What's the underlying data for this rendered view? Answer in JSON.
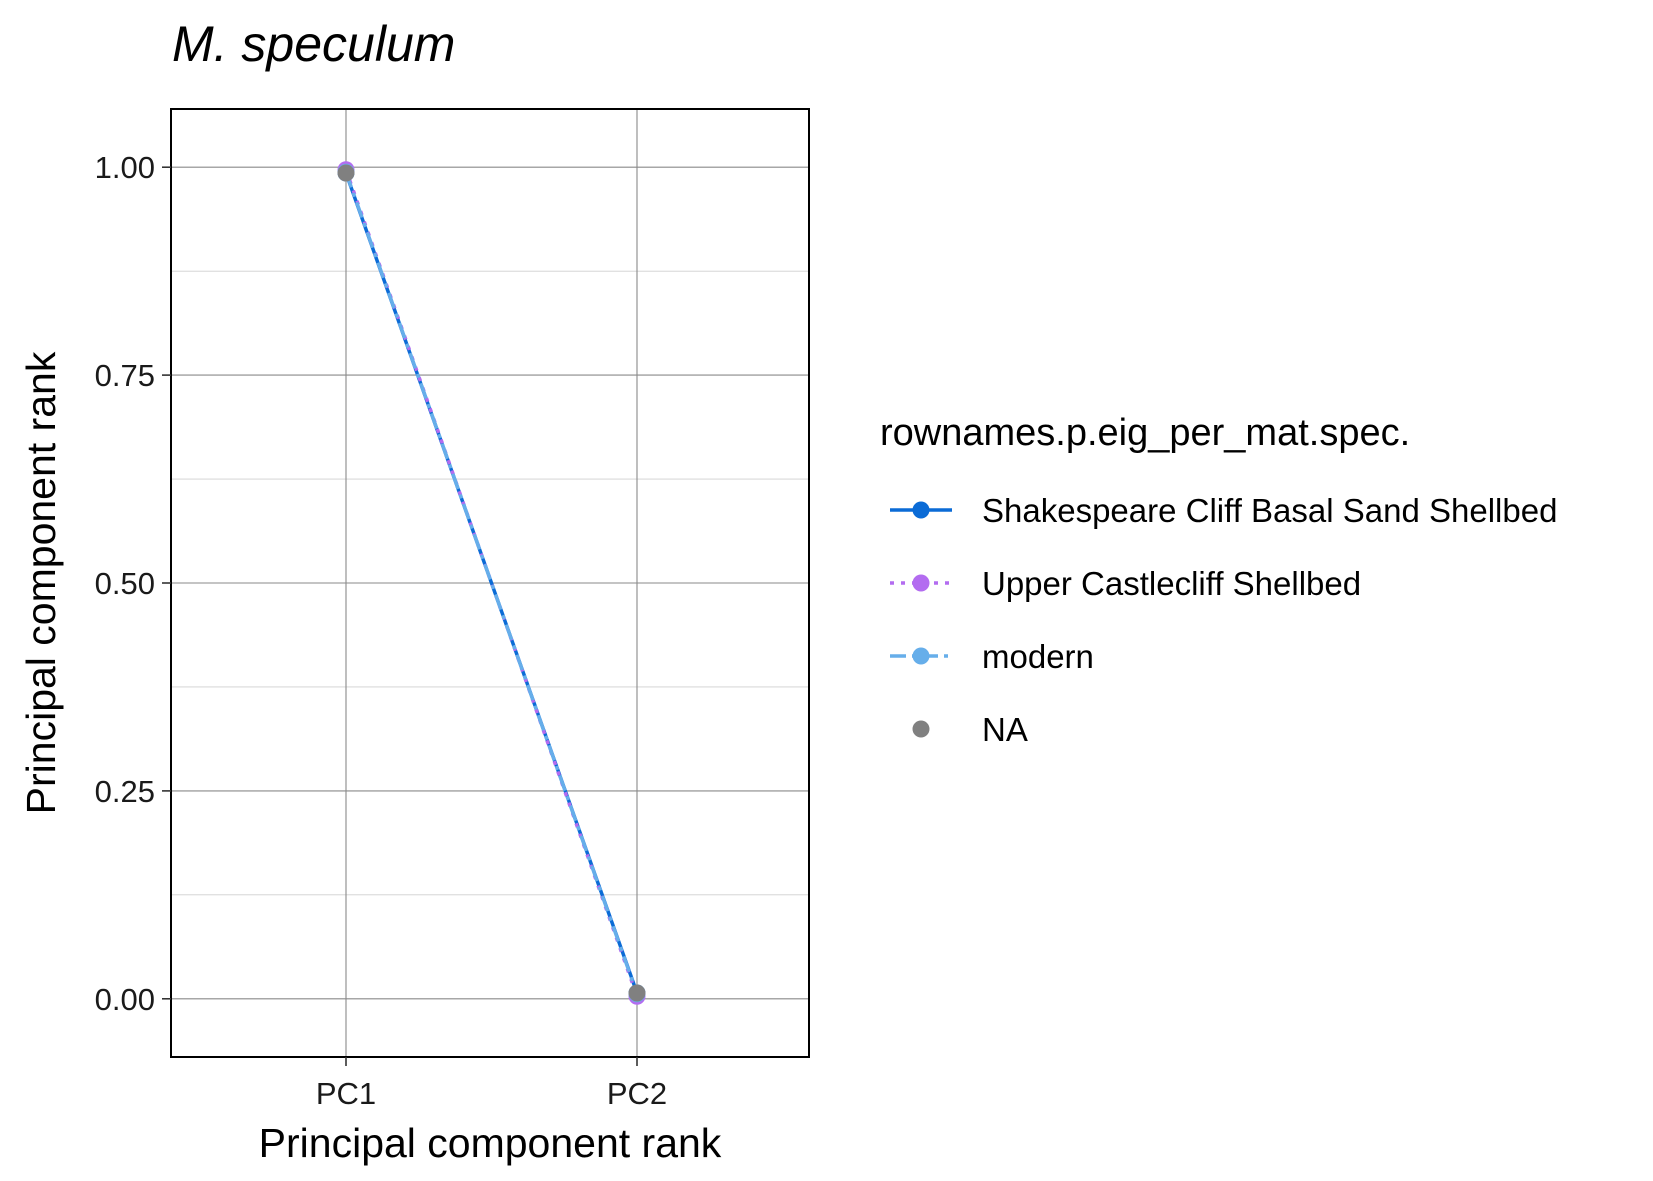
{
  "chart_data": {
    "type": "line",
    "title": "M. speculum",
    "xlabel": "Principal component rank",
    "ylabel": "Principal component rank",
    "categories": [
      "PC1",
      "PC2"
    ],
    "ylim": [
      -0.07,
      1.07
    ],
    "yticks": [
      0.0,
      0.25,
      0.5,
      0.75,
      1.0
    ],
    "ytick_labels": [
      "0.00",
      "0.25",
      "0.50",
      "0.75",
      "1.00"
    ],
    "grid": true,
    "legend": {
      "title": "rownames.p.eig_per_mat.spec.",
      "placement": "right"
    },
    "series": [
      {
        "name": "Shakespeare Cliff Basal Sand Shellbed",
        "values": [
          0.993,
          0.007
        ],
        "color": "#0b6bd6",
        "dash": "solid",
        "line": true
      },
      {
        "name": "Upper Castlecliff Shellbed",
        "values": [
          0.997,
          0.003
        ],
        "color": "#b36cf0",
        "dash": "dotted",
        "line": true
      },
      {
        "name": "modern",
        "values": [
          0.994,
          0.006
        ],
        "color": "#66aeea",
        "dash": "dashed",
        "line": true
      },
      {
        "name": "NA",
        "values": [
          0.993,
          0.007
        ],
        "color": "#808080",
        "dash": "none",
        "line": false
      }
    ]
  }
}
